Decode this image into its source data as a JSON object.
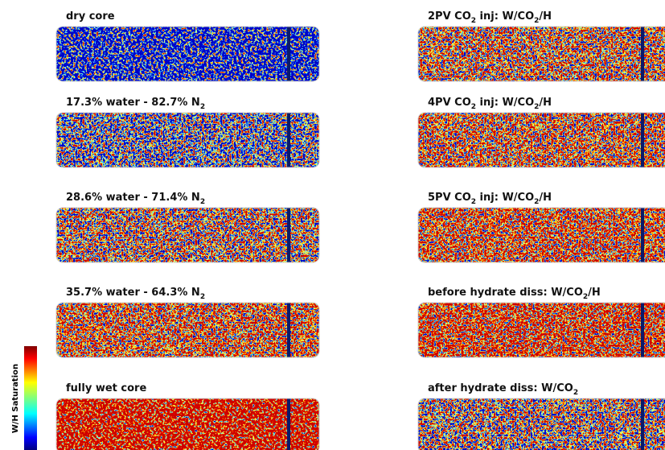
{
  "colorbar": {
    "label": "W/H Saturation"
  },
  "panels": [
    {
      "label": [
        {
          "text": "dry core"
        }
      ]
    },
    {
      "label": [
        {
          "text": "17.3% water - 82.7% N"
        },
        {
          "sub": "2"
        }
      ]
    },
    {
      "label": [
        {
          "text": "28.6% water - 71.4% N"
        },
        {
          "sub": "2"
        }
      ]
    },
    {
      "label": [
        {
          "text": "35.7% water - 64.3% N"
        },
        {
          "sub": "2"
        }
      ]
    },
    {
      "label": [
        {
          "text": "fully wet core"
        }
      ]
    },
    {
      "label": [
        {
          "text": "2PV CO"
        },
        {
          "sub": "2"
        },
        {
          "text": " inj: W/CO"
        },
        {
          "sub": "2"
        },
        {
          "text": "/H"
        }
      ]
    },
    {
      "label": [
        {
          "text": "4PV CO"
        },
        {
          "sub": "2"
        },
        {
          "text": " inj: W/CO"
        },
        {
          "sub": "2"
        },
        {
          "text": "/H"
        }
      ]
    },
    {
      "label": [
        {
          "text": "5PV CO"
        },
        {
          "sub": "2"
        },
        {
          "text": " inj: W/CO"
        },
        {
          "sub": "2"
        },
        {
          "text": "/H"
        }
      ]
    },
    {
      "label": [
        {
          "text": "before hydrate diss: W/CO"
        },
        {
          "sub": "2"
        },
        {
          "text": "/H"
        }
      ]
    },
    {
      "label": [
        {
          "text": "after hydrate diss: W/CO"
        },
        {
          "sub": "2"
        }
      ]
    }
  ]
}
